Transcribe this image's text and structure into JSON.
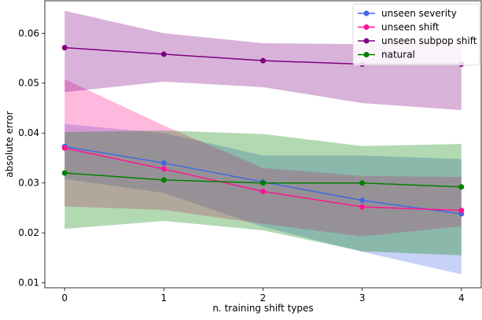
{
  "chart_data": {
    "type": "line",
    "title": "",
    "xlabel": "n. training shift types",
    "ylabel": "absolute error",
    "x": [
      0,
      1,
      2,
      3,
      4
    ],
    "xlim": [
      -0.2,
      4.2
    ],
    "ylim": [
      0.009,
      0.0665
    ],
    "xticks": [
      0,
      1,
      2,
      3,
      4
    ],
    "xtick_labels": [
      "0",
      "1",
      "2",
      "3",
      "4"
    ],
    "yticks": [
      0.01,
      0.02,
      0.03,
      0.04,
      0.05,
      0.06
    ],
    "ytick_labels": [
      "0.01",
      "0.02",
      "0.03",
      "0.04",
      "0.05",
      "0.06"
    ],
    "grid": false,
    "legend_position": "top-right",
    "series": [
      {
        "name": "unseen severity",
        "color": "#4169e1",
        "values": [
          0.0373,
          0.034,
          0.0302,
          0.0265,
          0.0238
        ],
        "lower": [
          0.0308,
          0.028,
          0.0212,
          0.0162,
          0.0117
        ],
        "upper": [
          0.0418,
          0.04,
          0.0355,
          0.0355,
          0.0348
        ]
      },
      {
        "name": "unseen shift",
        "color": "#ff1493",
        "values": [
          0.037,
          0.0328,
          0.0283,
          0.0252,
          0.0245
        ],
        "lower": [
          0.0253,
          0.0246,
          0.0218,
          0.0193,
          0.0213
        ],
        "upper": [
          0.0508,
          0.0415,
          0.033,
          0.0314,
          0.0312
        ]
      },
      {
        "name": "unseen subpop shift",
        "color": "#800080",
        "values": [
          0.0571,
          0.0558,
          0.0545,
          0.0538,
          0.0538
        ],
        "lower": [
          0.0482,
          0.0503,
          0.0492,
          0.046,
          0.0446
        ],
        "upper": [
          0.0645,
          0.06,
          0.058,
          0.0578,
          0.058
        ]
      },
      {
        "name": "natural",
        "color": "#008000",
        "values": [
          0.032,
          0.0306,
          0.03,
          0.03,
          0.0292
        ],
        "lower": [
          0.0208,
          0.0224,
          0.0205,
          0.0163,
          0.0155
        ],
        "upper": [
          0.0402,
          0.0405,
          0.0398,
          0.0374,
          0.0378
        ]
      }
    ]
  }
}
